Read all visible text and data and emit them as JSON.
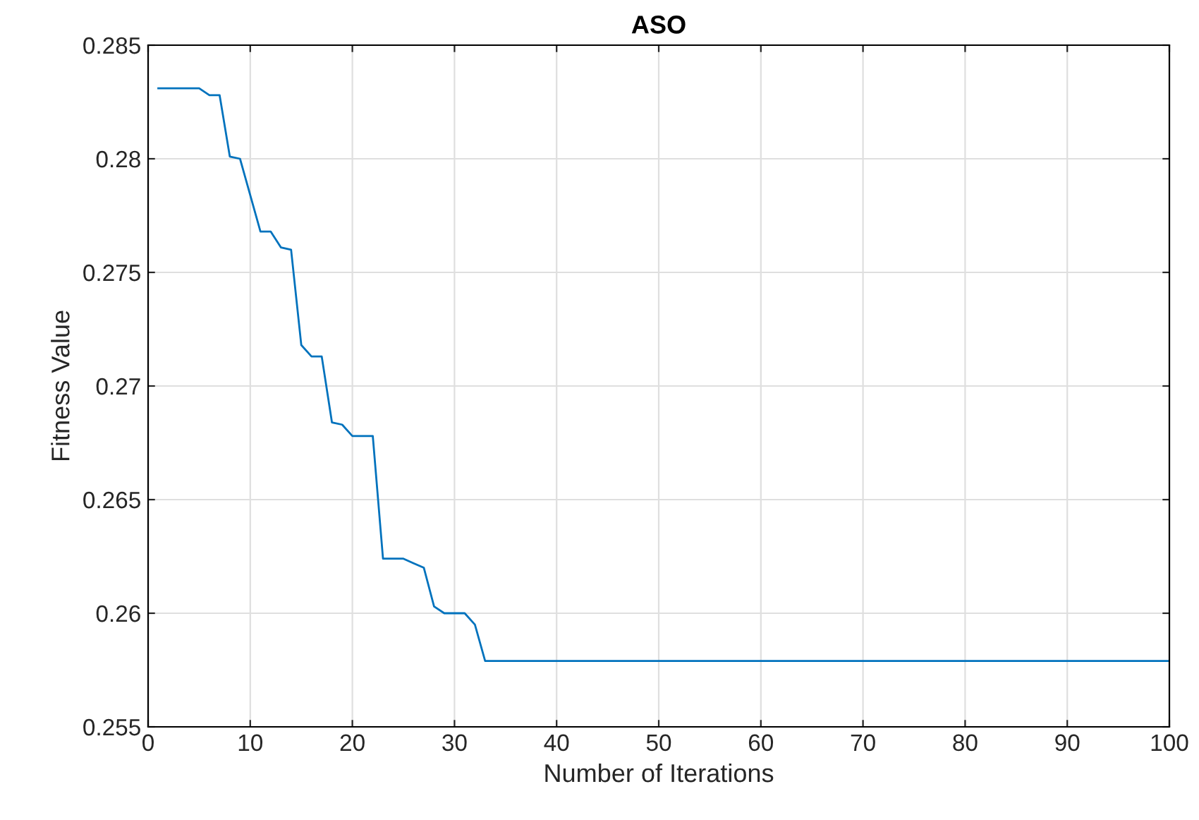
{
  "chart_data": {
    "type": "line",
    "title": "ASO",
    "xlabel": "Number of Iterations",
    "ylabel": "Fitness Value",
    "x": [
      1,
      5,
      6,
      7,
      8,
      9,
      11,
      12,
      13,
      14,
      15,
      16,
      17,
      18,
      19,
      20,
      22,
      23,
      25,
      26,
      27,
      28,
      29,
      31,
      32,
      33,
      100
    ],
    "series": [
      {
        "color": "#0072bd",
        "values": [
          0.2831,
          0.2831,
          0.2828,
          0.2828,
          0.2801,
          0.28,
          0.2768,
          0.2768,
          0.2761,
          0.276,
          0.2718,
          0.2713,
          0.2713,
          0.2684,
          0.2683,
          0.2678,
          0.2678,
          0.2624,
          0.2624,
          0.2622,
          0.262,
          0.2603,
          0.26,
          0.26,
          0.2595,
          0.2579,
          0.2579
        ]
      }
    ],
    "xlim": [
      0,
      100
    ],
    "ylim": [
      0.255,
      0.285
    ],
    "xticks": [
      0,
      10,
      20,
      30,
      40,
      50,
      60,
      70,
      80,
      90,
      100
    ],
    "yticks": [
      0.255,
      0.26,
      0.265,
      0.27,
      0.275,
      0.28,
      0.285
    ],
    "grid": true,
    "marker": "none",
    "line_style": "solid"
  }
}
